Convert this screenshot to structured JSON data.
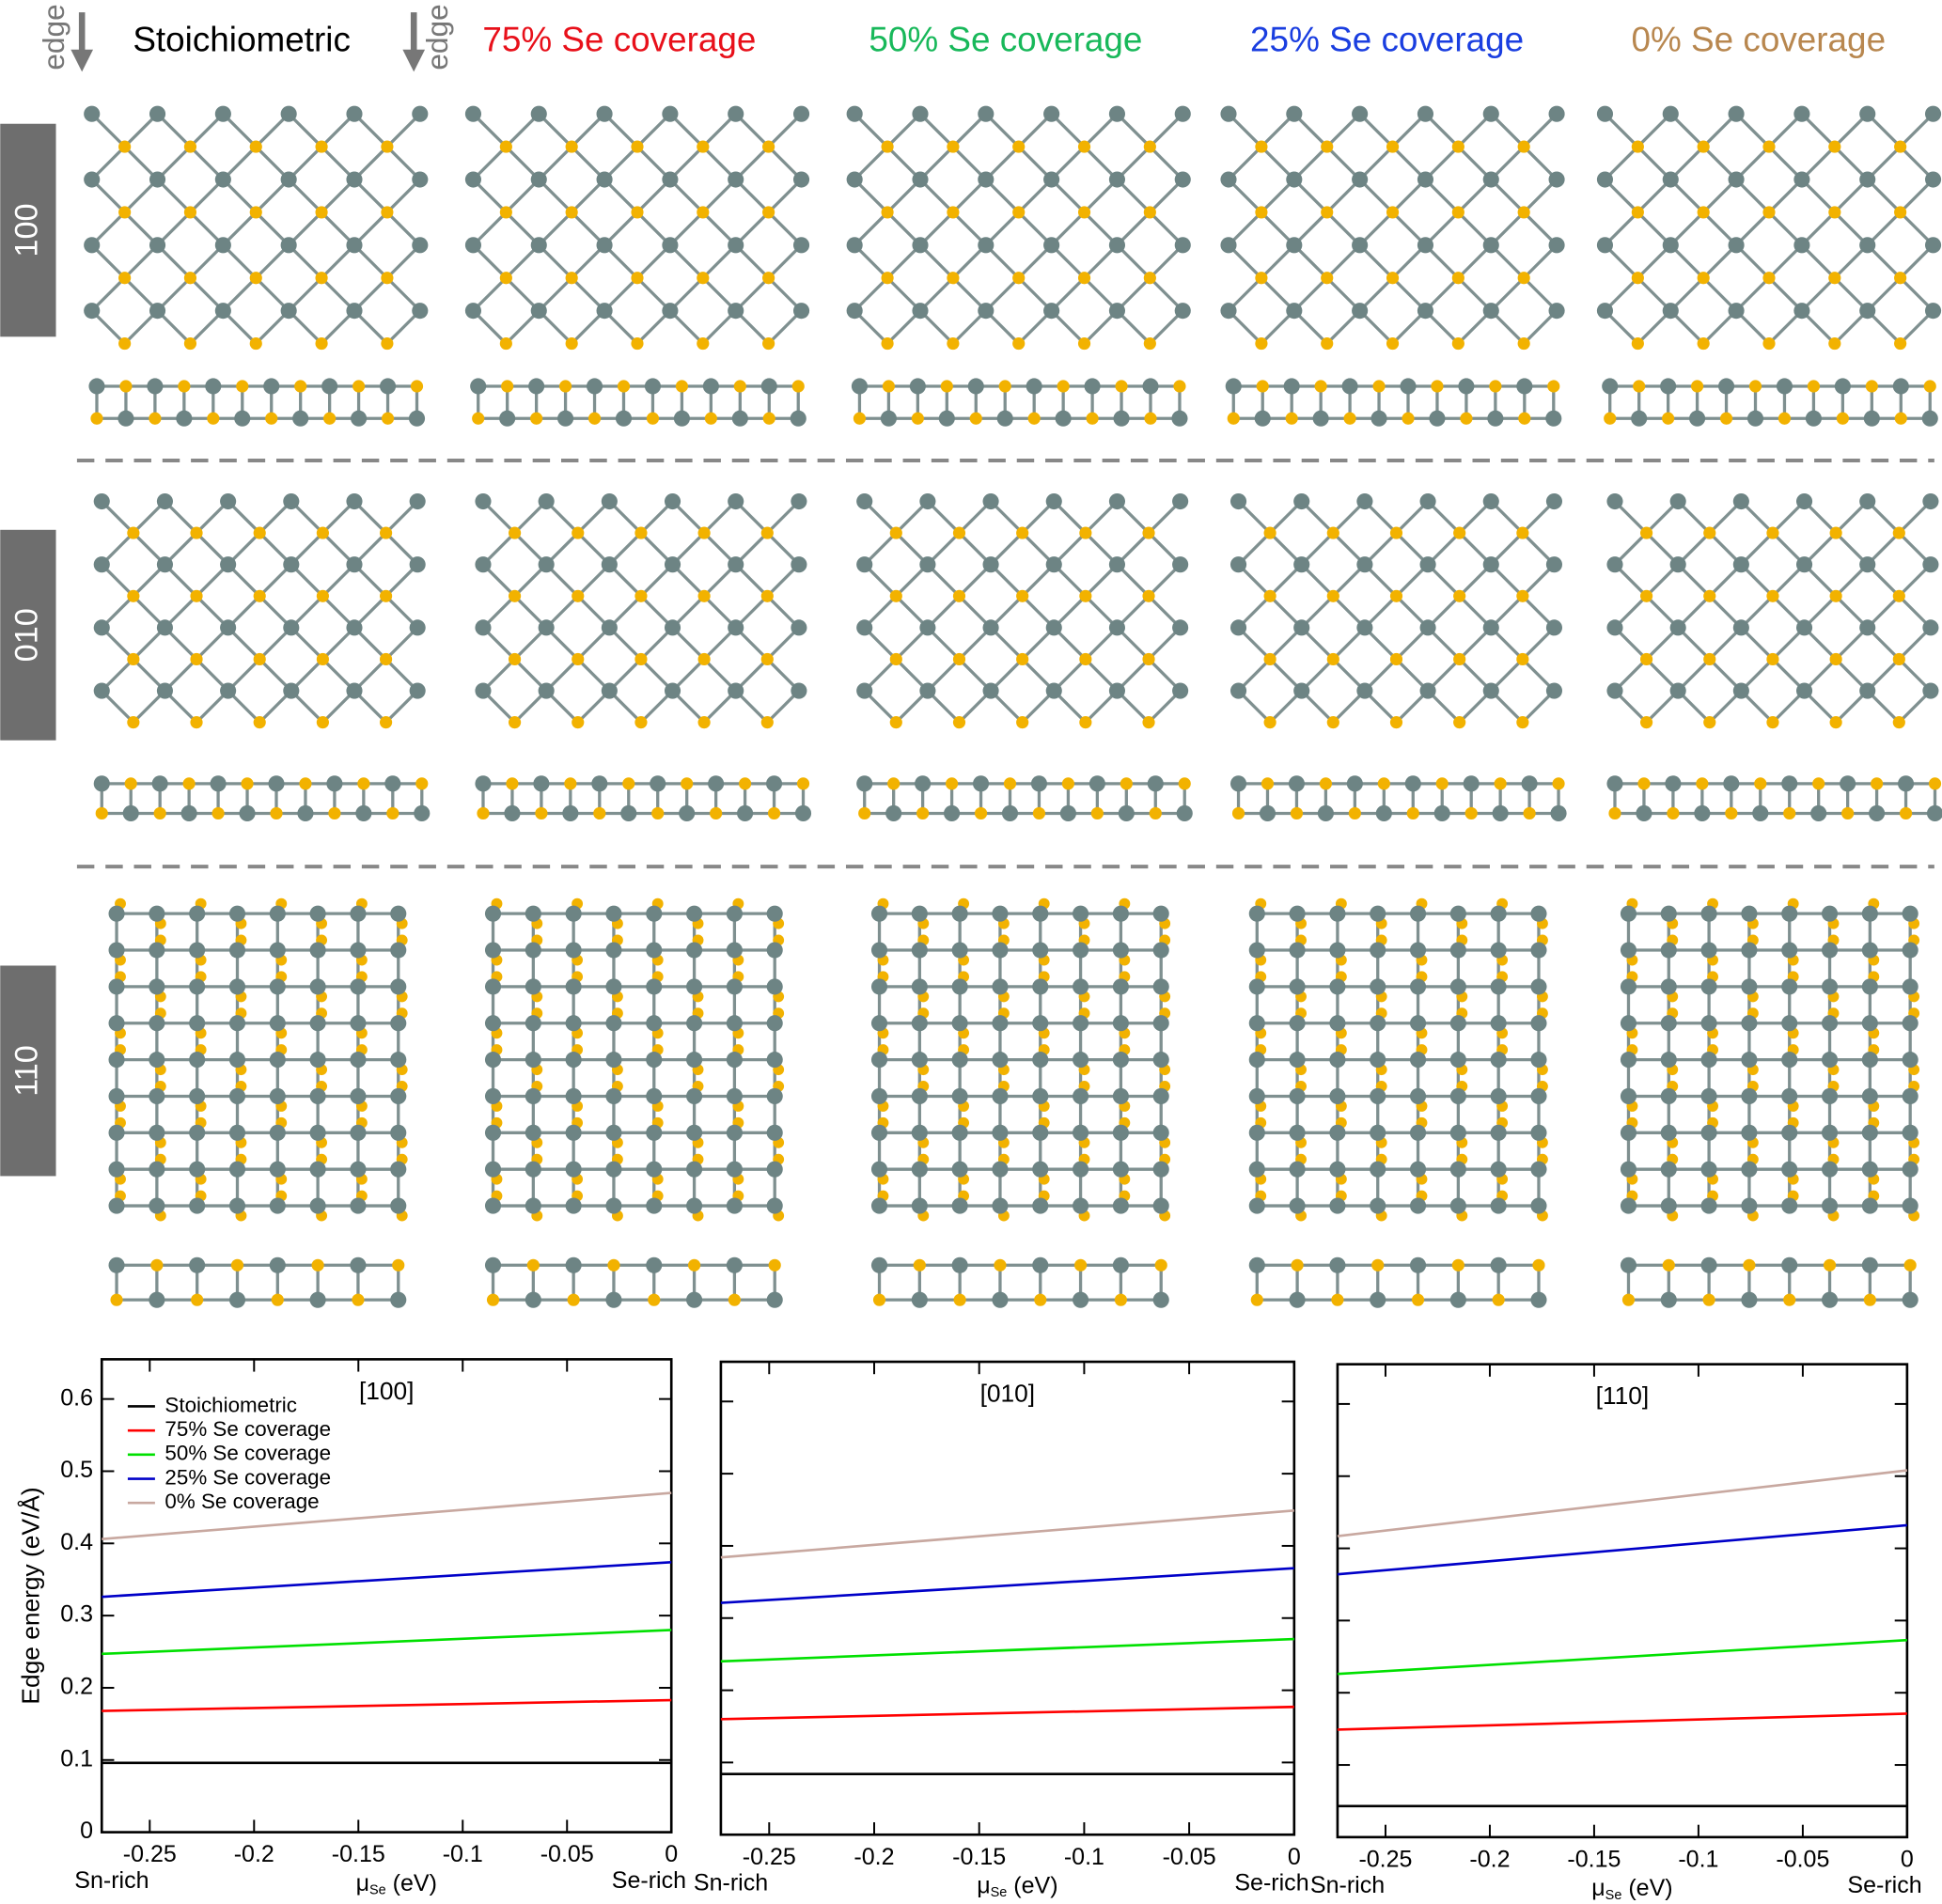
{
  "figure": {
    "edge_labels": [
      "edge",
      "edge"
    ],
    "columns": [
      {
        "text": "Stoichiometric",
        "color": "#000000"
      },
      {
        "text": "75% Se coverage",
        "color": "#e8101a"
      },
      {
        "text": "50% Se coverage",
        "color": "#18b85a"
      },
      {
        "text": "25% Se coverage",
        "color": "#1a3ee0"
      },
      {
        "text": "0% Se coverage",
        "color": "#b8874f"
      }
    ],
    "rows": [
      "100",
      "010",
      "110"
    ]
  },
  "chart_data": [
    {
      "type": "line",
      "title": "[100]",
      "ylabel": "Edge energy (eV/Å)",
      "xlabel_parts": [
        "μ",
        "Se",
        " (eV)"
      ],
      "end_labels": [
        "Sn-rich",
        "Se-rich"
      ],
      "x": [
        -0.273,
        0
      ],
      "xlim": [
        -0.273,
        0
      ],
      "ylim": [
        0,
        0.655
      ],
      "xticks": [
        -0.25,
        -0.2,
        -0.15,
        -0.1,
        -0.05,
        0
      ],
      "yticks": [
        0,
        0.1,
        0.2,
        0.3,
        0.4,
        0.5,
        0.6
      ],
      "ytick_labels": true,
      "legend": "upper left",
      "series": [
        {
          "name": "Stoichiometric",
          "color": "#000000",
          "values": [
            0.096,
            0.096
          ]
        },
        {
          "name": "75% Se coverage",
          "color": "#ff0000",
          "values": [
            0.168,
            0.183
          ]
        },
        {
          "name": "50% Se coverage",
          "color": "#00e000",
          "values": [
            0.247,
            0.28
          ]
        },
        {
          "name": "25% Se coverage",
          "color": "#0000c8",
          "values": [
            0.326,
            0.374
          ]
        },
        {
          "name": "0% Se coverage",
          "color": "#c8a8a0",
          "values": [
            0.406,
            0.47
          ]
        }
      ]
    },
    {
      "type": "line",
      "title": "[010]",
      "xlabel_parts": [
        "μ",
        "Se",
        " (eV)"
      ],
      "end_labels": [
        "Sn-rich",
        "Se-rich"
      ],
      "x": [
        -0.273,
        0
      ],
      "xlim": [
        -0.273,
        0
      ],
      "ylim": [
        0,
        0.655
      ],
      "xticks": [
        -0.25,
        -0.2,
        -0.15,
        -0.1,
        -0.05,
        0
      ],
      "yticks": [
        0,
        0.1,
        0.2,
        0.3,
        0.4,
        0.5,
        0.6
      ],
      "ytick_labels": false,
      "series": [
        {
          "color": "#000000",
          "values": [
            0.084,
            0.084
          ]
        },
        {
          "color": "#ff0000",
          "values": [
            0.16,
            0.177
          ]
        },
        {
          "color": "#00e000",
          "values": [
            0.24,
            0.271
          ]
        },
        {
          "color": "#0000c8",
          "values": [
            0.321,
            0.369
          ]
        },
        {
          "color": "#c8a8a0",
          "values": [
            0.384,
            0.449
          ]
        }
      ]
    },
    {
      "type": "line",
      "title": "[110]",
      "xlabel_parts": [
        "μ",
        "Se",
        " (eV)"
      ],
      "end_labels": [
        "Sn-rich",
        "Se-rich"
      ],
      "x": [
        -0.273,
        0
      ],
      "xlim": [
        -0.273,
        0
      ],
      "ylim": [
        0,
        0.655
      ],
      "xticks": [
        -0.25,
        -0.2,
        -0.15,
        -0.1,
        -0.05,
        0
      ],
      "yticks": [
        0,
        0.1,
        0.2,
        0.3,
        0.4,
        0.5,
        0.6
      ],
      "ytick_labels": false,
      "series": [
        {
          "color": "#000000",
          "values": [
            0.043,
            0.043
          ]
        },
        {
          "color": "#ff0000",
          "values": [
            0.149,
            0.171
          ]
        },
        {
          "color": "#00e000",
          "values": [
            0.226,
            0.273
          ]
        },
        {
          "color": "#0000c8",
          "values": [
            0.364,
            0.432
          ]
        },
        {
          "color": "#c8a8a0",
          "values": [
            0.417,
            0.508
          ]
        }
      ]
    }
  ]
}
